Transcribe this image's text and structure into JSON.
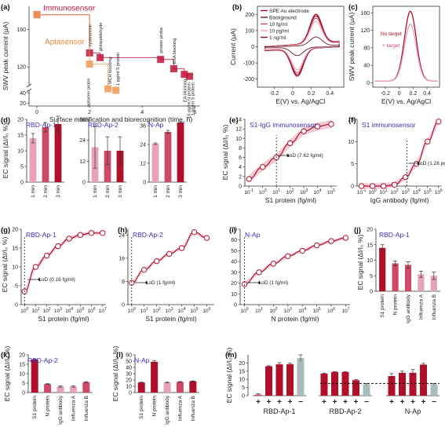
{
  "colors": {
    "dark": "#b0102a",
    "mid": "#cc4a68",
    "light": "#e6a3b8",
    "grey": "#a9bcbc",
    "orange": "#f19a55",
    "accent_text": "#3d2fb8",
    "immuno": "#c0133a",
    "apta": "#ef8a3a"
  },
  "chart_data": [
    {
      "id": "a",
      "type": "line",
      "panel_label": "(a)",
      "xlabel": "Surface modification and biorecognition (time, h)",
      "ylabel": "SWV peak current (μA)",
      "xlim": [
        -0.3,
        6.2
      ],
      "yticks": [
        20,
        40,
        120,
        160
      ],
      "xticks": [
        0,
        2,
        4,
        6
      ],
      "series": [
        {
          "name": "Immunosensor",
          "x": [
            0,
            2.0,
            2.4,
            4.7,
            5.2,
            5.6,
            5.8
          ],
          "y": [
            176,
            135,
            130,
            128,
            118,
            112,
            110
          ]
        },
        {
          "name": "Aptasensor",
          "x": [
            0,
            2.0,
            2.7,
            3.0
          ],
          "y": [
            176,
            123,
            62,
            45
          ]
        }
      ],
      "point_labels": [
        "cysteamine",
        "glutaraldehyde",
        "protein probe",
        "BSA blocking",
        "EA blocking",
        "10 pg/ml N protein",
        "1 pg/ml S protein",
        "aptamer probe",
        "MCH blocking",
        "1 pg/ml S protein"
      ]
    },
    {
      "id": "b",
      "type": "line",
      "panel_label": "(b)",
      "xlabel": "E(V) vs. Ag/AgCl",
      "ylabel": "Current (μA)",
      "xticks": [
        -0.2,
        0.0,
        0.2,
        0.4
      ],
      "yticks": [
        -200,
        -100,
        0,
        100,
        200
      ],
      "legend": [
        "SPE Au electrode",
        "Background",
        "10 fg/ml",
        "10 pg/ml",
        "1 ng/ml"
      ]
    },
    {
      "id": "c",
      "type": "line",
      "panel_label": "(c)",
      "xlabel": "E(V) vs. Ag/AgCl",
      "ylabel": "SWV peak current (μA)",
      "xticks": [
        -0.2,
        0.0,
        0.2,
        0.4
      ],
      "yticks": [
        0,
        40,
        80,
        120,
        160
      ],
      "legend": [
        "No target",
        "+ target"
      ]
    },
    {
      "id": "d1",
      "type": "bar",
      "panel_label": "(d)",
      "title": "RBD-Ap-1",
      "ylabel": "EC signal (ΔI/I₀ %)",
      "categories": [
        "1 min",
        "2 min",
        "3 min"
      ],
      "values": [
        14,
        17.5,
        18.5
      ],
      "errors": [
        1.5,
        1.5,
        2.5
      ],
      "ylim": [
        0,
        20
      ],
      "yticks": [
        0,
        5,
        10,
        15,
        20
      ]
    },
    {
      "id": "d2",
      "type": "bar",
      "title": "RBD-Ap-2",
      "categories": [
        "1 min",
        "2 min",
        "3 min"
      ],
      "values": [
        20,
        18,
        18
      ],
      "errors": [
        12,
        8,
        8
      ],
      "ylim": [
        0,
        36
      ],
      "yticks": [
        0,
        12,
        24,
        36
      ]
    },
    {
      "id": "d3",
      "type": "bar",
      "title": "N-Ap",
      "categories": [
        "1 min",
        "2 min",
        "3 min"
      ],
      "values": [
        24.5,
        32,
        38
      ],
      "errors": [
        0.5,
        1,
        0.5
      ],
      "ylim": [
        0,
        40
      ],
      "yticks": [
        0,
        12,
        24,
        36
      ]
    },
    {
      "id": "e",
      "type": "scatter",
      "panel_label": "(e)",
      "title": "S1-IgG immunosensor",
      "xlabel": "S1 protein (fg/ml)",
      "ylabel": "EC signal (ΔI/I₀ %)",
      "x": [
        0.1,
        1,
        10,
        100,
        1000,
        10000,
        100000
      ],
      "y": [
        1.5,
        4,
        6,
        9,
        11.5,
        12.5,
        13
      ],
      "ylim": [
        0,
        14
      ],
      "yticks": [
        0,
        2,
        4,
        6,
        8,
        10,
        12,
        14
      ],
      "annotation": "LoD (7.62 fg/ml)"
    },
    {
      "id": "f",
      "type": "scatter",
      "panel_label": "(f)",
      "title": "S1 immunosensor",
      "xlabel": "IgG antibody (fg/ml)",
      "x": [
        0.1,
        1,
        10,
        100,
        1000,
        10000,
        100000,
        1000000
      ],
      "y": [
        0,
        0,
        0,
        0.3,
        2,
        5,
        10,
        14.5
      ],
      "ylim": [
        0,
        15
      ],
      "yticks": [
        0,
        5,
        10,
        15
      ],
      "annotation": "LoD (1.28 pg/ml)"
    },
    {
      "id": "g",
      "type": "scatter",
      "panel_label": "(g)",
      "title": "RBD-Ap-1",
      "xlabel": "S1 protein (fg/ml)",
      "ylabel": "EC signal (ΔI/I₀ %)",
      "x": [
        1,
        10,
        100,
        1000,
        10000,
        100000,
        1000000,
        10000000
      ],
      "y": [
        3.5,
        10,
        13,
        15.5,
        17.5,
        18.5,
        19,
        19
      ],
      "ylim": [
        0,
        20
      ],
      "yticks": [
        0,
        5,
        10,
        15,
        20
      ],
      "annotation": "LoD (0.16 fg/ml)"
    },
    {
      "id": "h",
      "type": "scatter",
      "panel_label": "(h)",
      "title": "RBD-Ap-2",
      "xlabel": "S1 protein (fg/ml)",
      "x": [
        1,
        10,
        100,
        1000,
        10000,
        100000,
        1000000
      ],
      "y": [
        7.5,
        12,
        15,
        17.5,
        19.5,
        25,
        23
      ],
      "ylim": [
        0,
        26
      ],
      "yticks": [
        0,
        8,
        16,
        24
      ],
      "annotation": "LoD (1 fg/ml)"
    },
    {
      "id": "i",
      "type": "scatter",
      "panel_label": "(i)",
      "title": "N-Ap",
      "xlabel": "N protein (fg/ml)",
      "x": [
        1,
        10,
        100,
        1000,
        10000,
        100000,
        1000000,
        10000000
      ],
      "y": [
        19,
        30,
        38,
        45,
        50,
        55,
        59,
        62
      ],
      "ylim": [
        0,
        70
      ],
      "yticks": [
        0,
        10,
        20,
        30,
        40,
        50,
        60,
        70
      ],
      "annotation": "LoD (1 fg/ml)"
    },
    {
      "id": "j",
      "type": "bar",
      "panel_label": "(j)",
      "title": "RBD-Ap-1",
      "ylabel": "EC signal (ΔI/I₀ %)",
      "categories": [
        "S1 protein",
        "N protein",
        "IgG antibody",
        "Influenza A",
        "Influenza B"
      ],
      "values": [
        14,
        9,
        8.5,
        5.5,
        5
      ],
      "errors": [
        1,
        0.8,
        1,
        1,
        1.2
      ],
      "ylim": [
        0,
        20
      ],
      "yticks": [
        0,
        5,
        10,
        15,
        20
      ]
    },
    {
      "id": "k",
      "type": "bar",
      "panel_label": "(k)",
      "title": "RBD-Ap-2",
      "ylabel": "EC signal (ΔI/I₀ %)",
      "categories": [
        "S1 protein",
        "N protein",
        "IgG antibody",
        "Influenza A",
        "Influenza B"
      ],
      "values": [
        17.5,
        4.5,
        3.2,
        3.2,
        5.5
      ],
      "errors": [
        0.3,
        0.2,
        0.3,
        0.3,
        0.3
      ],
      "ylim": [
        0,
        20
      ],
      "yticks": [
        0,
        5,
        10,
        15,
        20
      ]
    },
    {
      "id": "l",
      "type": "bar",
      "panel_label": "(l)",
      "title": "N-Ap",
      "ylabel": "EC signal (ΔI/I₀ %)",
      "categories": [
        "S1 protein",
        "N protein",
        "IgG antibody",
        "Influenza A",
        "Influenza B"
      ],
      "values": [
        16,
        49,
        16,
        17,
        18
      ],
      "errors": [
        0.5,
        2,
        0.5,
        0.5,
        0.5
      ],
      "ylim": [
        0,
        60
      ],
      "yticks": [
        0,
        10,
        20,
        30,
        40,
        50,
        60
      ]
    },
    {
      "id": "m",
      "type": "bar",
      "panel_label": "(m)",
      "ylabel": "EC signal (ΔI/I₀ %)",
      "ylim": [
        0,
        25
      ],
      "yticks": [
        0,
        5,
        10,
        15,
        20
      ],
      "threshold": 7.5,
      "groups": [
        {
          "name": "RBD-Ap-1",
          "signs": [
            "+",
            "+",
            "+",
            "+",
            "−"
          ],
          "values": [
            0.7,
            18,
            19.2,
            19.3,
            23
          ],
          "errors": [
            0.5,
            0.3,
            1,
            0.6,
            2
          ]
        },
        {
          "name": "RBD-Ap-2",
          "signs": [
            "+",
            "+",
            "+",
            "+",
            "−"
          ],
          "values": [
            13.5,
            14.5,
            14.5,
            9.5,
            7
          ],
          "errors": [
            0.3,
            0.2,
            0.3,
            0.3,
            0.5
          ]
        },
        {
          "name": "N-Ap",
          "signs": [
            "+",
            "+",
            "+",
            "+",
            "−"
          ],
          "values": [
            12,
            14,
            14,
            19,
            7
          ],
          "errors": [
            1.5,
            1,
            2,
            0.8,
            0.5
          ]
        }
      ]
    }
  ]
}
